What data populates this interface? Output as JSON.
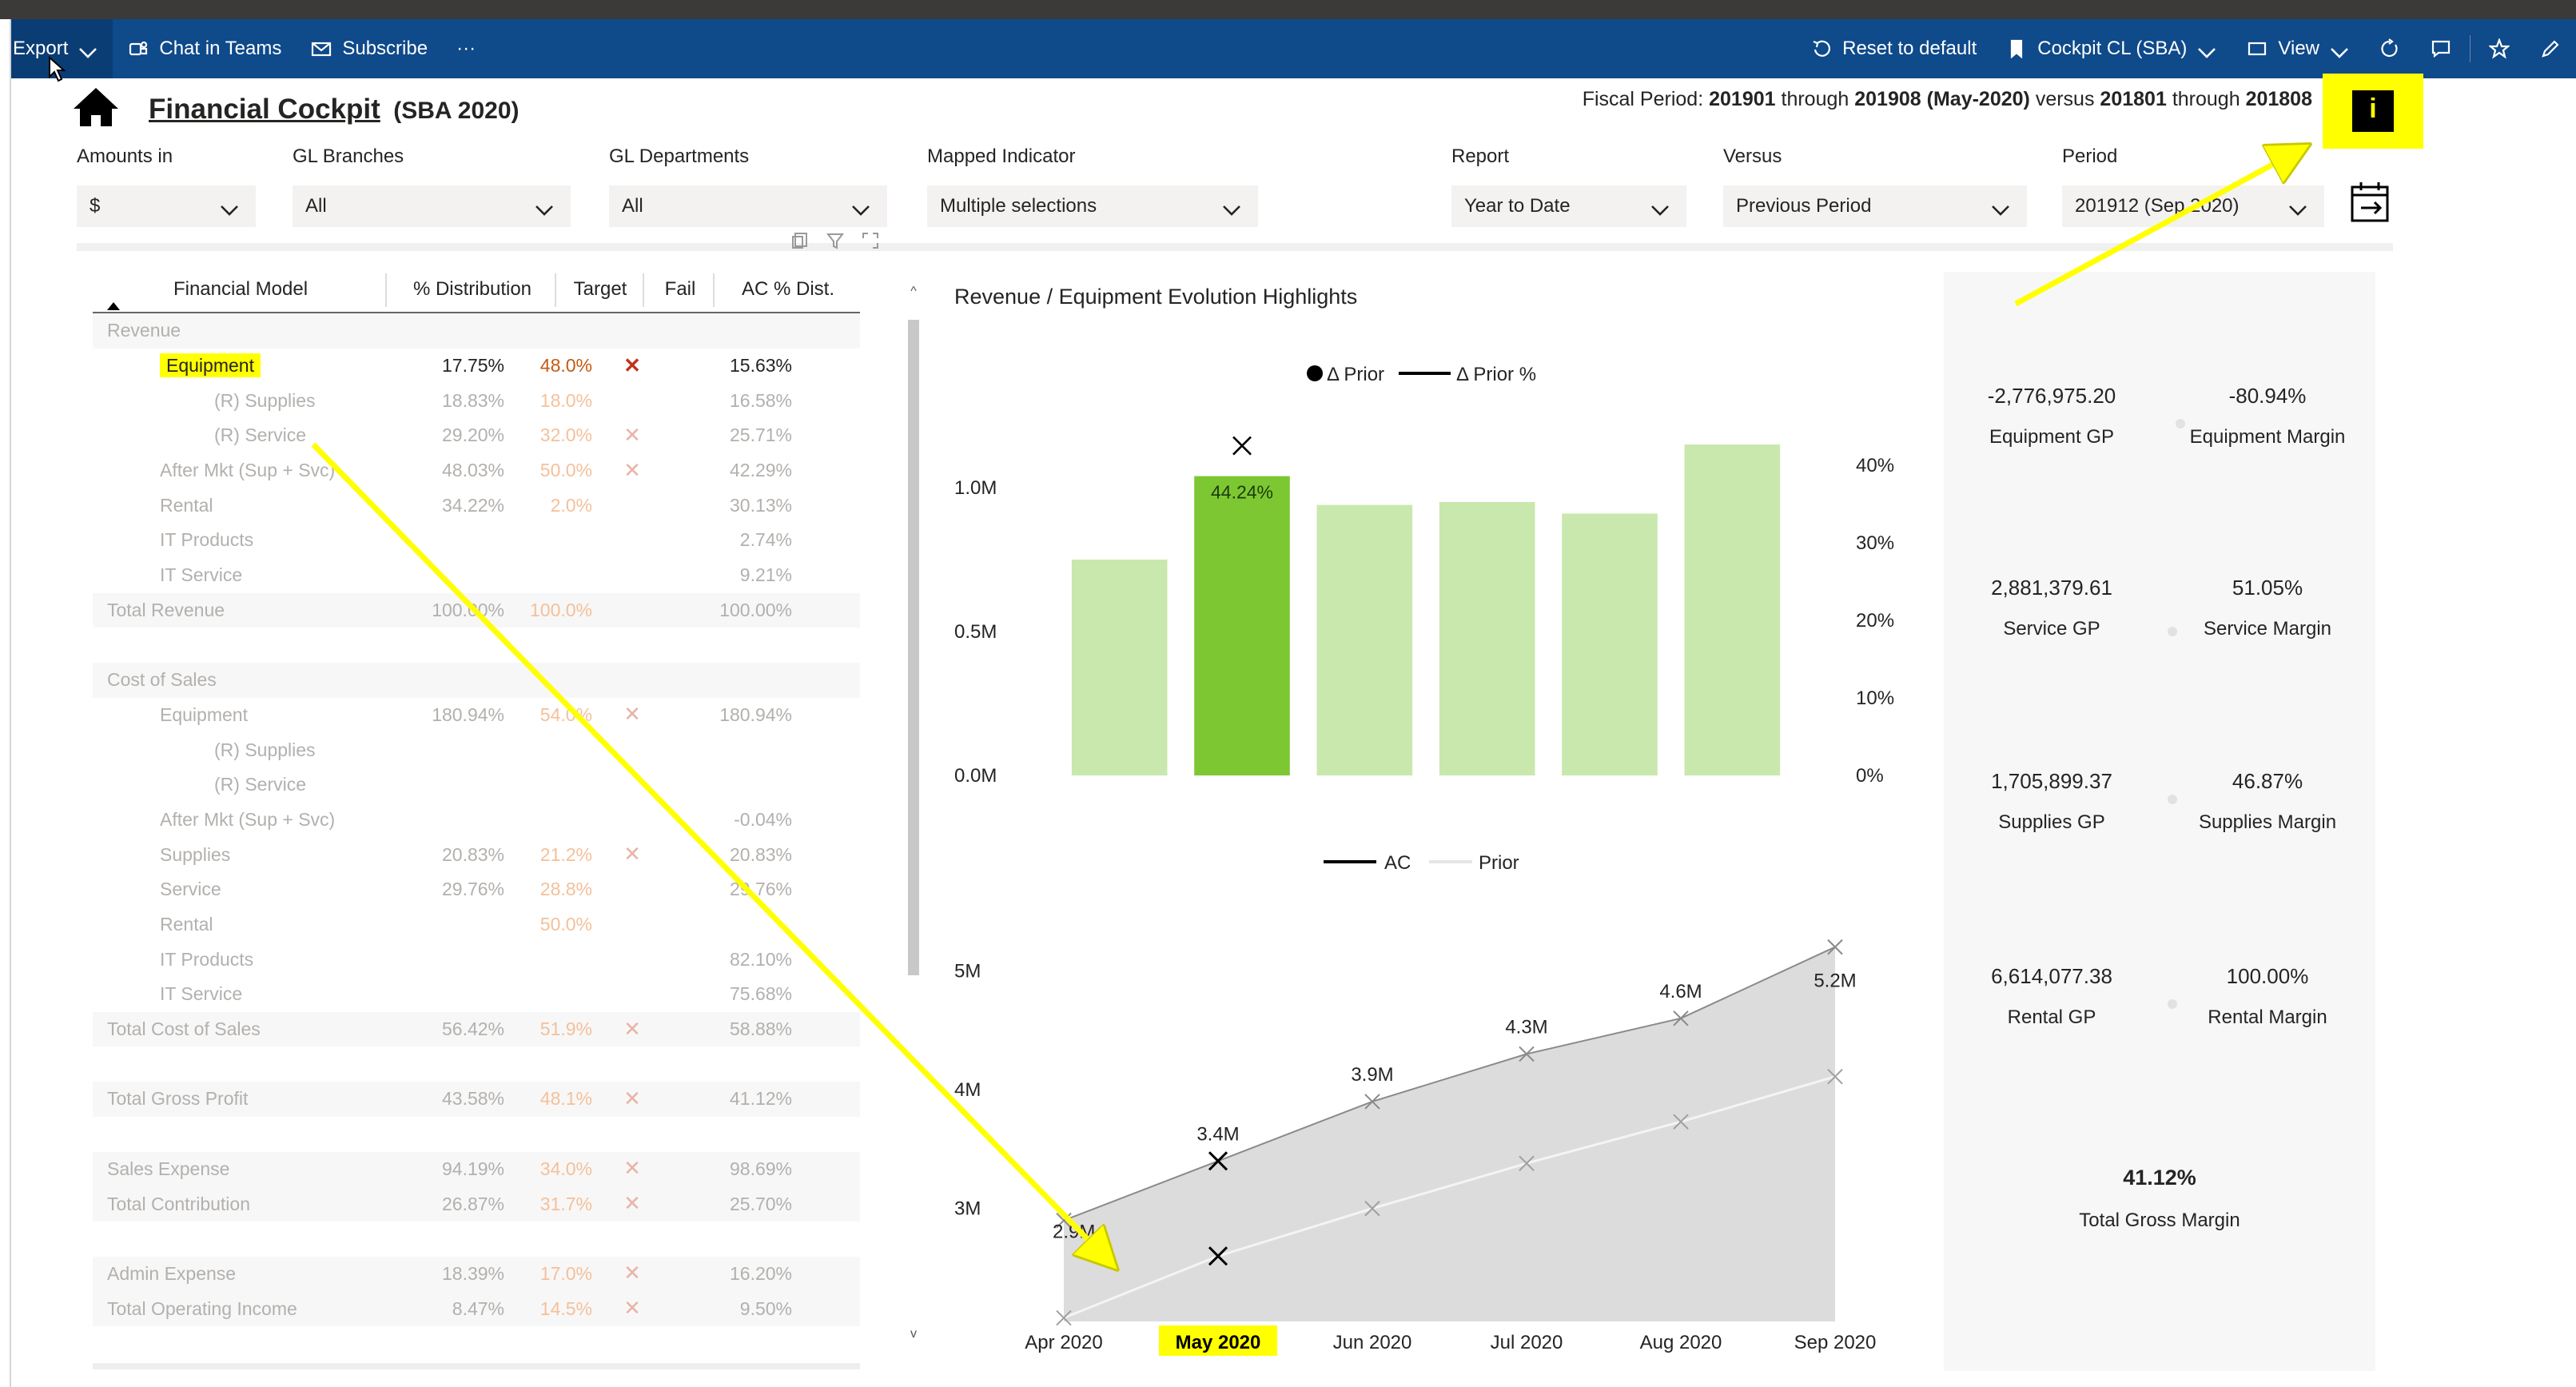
{
  "toolbar": {
    "export": "Export",
    "chat": "Chat in Teams",
    "subscribe": "Subscribe",
    "more": "···",
    "reset": "Reset to default",
    "bookmark": "Cockpit CL (SBA)",
    "view": "View"
  },
  "header": {
    "title": "Financial Cockpit",
    "subtitle": "(SBA 2020)",
    "fiscal_prefix": "Fiscal Period:",
    "fiscal_from": "201901",
    "fiscal_through": "through",
    "fiscal_to": "201908",
    "fiscal_month": "(May-2020)",
    "fiscal_versus": "versus",
    "fiscal_from2": "201801",
    "fiscal_through2": "through",
    "fiscal_to2": "201808"
  },
  "filters": [
    {
      "label": "Amounts in",
      "value": "$"
    },
    {
      "label": "GL Branches",
      "value": "All"
    },
    {
      "label": "GL Departments",
      "value": "All"
    },
    {
      "label": "Mapped Indicator",
      "value": "Multiple selections"
    },
    {
      "label": "Report",
      "value": "Year to Date"
    },
    {
      "label": "Versus",
      "value": "Previous Period"
    },
    {
      "label": "Period",
      "value": "201912 (Sep 2020)"
    }
  ],
  "table": {
    "headers": [
      "Financial Model",
      "% Distribution",
      "Target",
      "Fail",
      "AC % Dist."
    ],
    "rows": [
      {
        "label": "Revenue",
        "indent": 0,
        "dist": "",
        "target": "",
        "fail": false,
        "ac": "",
        "shade": true
      },
      {
        "label": "Equipment",
        "indent": 1,
        "dist": "17.75%",
        "target": "48.0%",
        "fail": true,
        "ac": "15.63%",
        "highlight": true
      },
      {
        "label": "(R) Supplies",
        "indent": 2,
        "dist": "18.83%",
        "target": "18.0%",
        "fail": false,
        "ac": "16.58%"
      },
      {
        "label": "(R) Service",
        "indent": 2,
        "dist": "29.20%",
        "target": "32.0%",
        "fail": true,
        "ac": "25.71%"
      },
      {
        "label": "After Mkt (Sup + Svc)",
        "indent": 1,
        "dist": "48.03%",
        "target": "50.0%",
        "fail": true,
        "ac": "42.29%"
      },
      {
        "label": "Rental",
        "indent": 1,
        "dist": "34.22%",
        "target": "2.0%",
        "fail": false,
        "ac": "30.13%"
      },
      {
        "label": "IT Products",
        "indent": 1,
        "dist": "",
        "target": "",
        "fail": false,
        "ac": "2.74%"
      },
      {
        "label": "IT Service",
        "indent": 1,
        "dist": "",
        "target": "",
        "fail": false,
        "ac": "9.21%"
      },
      {
        "label": "Total Revenue",
        "indent": 0,
        "dist": "100.00%",
        "target": "100.0%",
        "fail": false,
        "ac": "100.00%",
        "shade": true
      },
      {
        "label": "",
        "indent": 0,
        "dist": "",
        "target": "",
        "fail": false,
        "ac": ""
      },
      {
        "label": "Cost of Sales",
        "indent": 0,
        "dist": "",
        "target": "",
        "fail": false,
        "ac": "",
        "shade": true
      },
      {
        "label": "Equipment",
        "indent": 1,
        "dist": "180.94%",
        "target": "54.0%",
        "fail": true,
        "ac": "180.94%"
      },
      {
        "label": "(R) Supplies",
        "indent": 2,
        "dist": "",
        "target": "",
        "fail": false,
        "ac": ""
      },
      {
        "label": "(R) Service",
        "indent": 2,
        "dist": "",
        "target": "",
        "fail": false,
        "ac": ""
      },
      {
        "label": "After Mkt (Sup + Svc)",
        "indent": 1,
        "dist": "",
        "target": "",
        "fail": false,
        "ac": "-0.04%"
      },
      {
        "label": "Supplies",
        "indent": 1,
        "dist": "20.83%",
        "target": "21.2%",
        "fail": true,
        "ac": "20.83%"
      },
      {
        "label": "Service",
        "indent": 1,
        "dist": "29.76%",
        "target": "28.8%",
        "fail": false,
        "ac": "29.76%"
      },
      {
        "label": "Rental",
        "indent": 1,
        "dist": "",
        "target": "50.0%",
        "fail": false,
        "ac": ""
      },
      {
        "label": "IT Products",
        "indent": 1,
        "dist": "",
        "target": "",
        "fail": false,
        "ac": "82.10%"
      },
      {
        "label": "IT Service",
        "indent": 1,
        "dist": "",
        "target": "",
        "fail": false,
        "ac": "75.68%"
      },
      {
        "label": "Total Cost of Sales",
        "indent": 0,
        "dist": "56.42%",
        "target": "51.9%",
        "fail": true,
        "ac": "58.88%",
        "shade": true
      },
      {
        "label": "",
        "indent": 0,
        "dist": "",
        "target": "",
        "fail": false,
        "ac": ""
      },
      {
        "label": "Total Gross Profit",
        "indent": 0,
        "dist": "43.58%",
        "target": "48.1%",
        "fail": true,
        "ac": "41.12%",
        "shade": true
      },
      {
        "label": "",
        "indent": 0,
        "dist": "",
        "target": "",
        "fail": false,
        "ac": ""
      },
      {
        "label": "Sales Expense",
        "indent": 0,
        "dist": "94.19%",
        "target": "34.0%",
        "fail": true,
        "ac": "98.69%",
        "shade": true
      },
      {
        "label": "Total Contribution",
        "indent": 0,
        "dist": "26.87%",
        "target": "31.7%",
        "fail": true,
        "ac": "25.70%",
        "shade": true
      },
      {
        "label": "",
        "indent": 0,
        "dist": "",
        "target": "",
        "fail": false,
        "ac": ""
      },
      {
        "label": "Admin Expense",
        "indent": 0,
        "dist": "18.39%",
        "target": "17.0%",
        "fail": true,
        "ac": "16.20%",
        "shade": true
      },
      {
        "label": "Total Operating Income",
        "indent": 0,
        "dist": "8.47%",
        "target": "14.5%",
        "fail": true,
        "ac": "9.50%",
        "shade": true
      }
    ]
  },
  "chart_panel_title": "Revenue / Equipment Evolution Highlights",
  "chart_data": [
    {
      "type": "bar",
      "legend": [
        "Δ Prior",
        "Δ Prior %"
      ],
      "categories": [
        "Apr 2020",
        "May 2020",
        "Jun 2020",
        "Jul 2020",
        "Aug 2020",
        "Sep 2020"
      ],
      "values": [
        0.75,
        1.04,
        0.94,
        0.95,
        0.91,
        1.15
      ],
      "selected_index": 1,
      "selected_label": "44.24%",
      "y_ticks": [
        "0.0M",
        "0.5M",
        "1.0M"
      ],
      "ylim": [
        0,
        1.25
      ],
      "y2_ticks": [
        "0%",
        "10%",
        "20%",
        "30%",
        "40%"
      ],
      "bar_color": "#c9e8ad",
      "selected_color": "#7dc832"
    },
    {
      "type": "area",
      "legend": [
        "AC",
        "Prior"
      ],
      "categories": [
        "Apr 2020",
        "May 2020",
        "Jun 2020",
        "Jul 2020",
        "Aug 2020",
        "Sep 2020"
      ],
      "series": [
        {
          "name": "AC",
          "values": [
            2.9,
            3.4,
            3.9,
            4.3,
            4.6,
            5.2
          ],
          "labels": [
            "2.9M",
            "3.4M",
            "3.9M",
            "4.3M",
            "4.6M",
            "5.2M"
          ]
        },
        {
          "name": "Prior",
          "values": [
            2.08,
            2.6,
            3.0,
            3.38,
            3.73,
            4.11
          ]
        }
      ],
      "selected_index": 1,
      "y_ticks": [
        "3M",
        "4M",
        "5M"
      ],
      "ylim": [
        2.05,
        5.5
      ]
    }
  ],
  "kpis": [
    {
      "value": "-2,776,975.20",
      "label": "Equipment GP"
    },
    {
      "value": "-80.94%",
      "label": "Equipment Margin"
    },
    {
      "value": "2,881,379.61",
      "label": "Service GP"
    },
    {
      "value": "51.05%",
      "label": "Service Margin"
    },
    {
      "value": "1,705,899.37",
      "label": "Supplies GP"
    },
    {
      "value": "46.87%",
      "label": "Supplies Margin"
    },
    {
      "value": "6,614,077.38",
      "label": "Rental GP"
    },
    {
      "value": "100.00%",
      "label": "Rental Margin"
    }
  ],
  "kpi_total": {
    "value": "41.12%",
    "label": "Total Gross Margin"
  },
  "colors": {
    "toolbar": "#0f4a8a",
    "highlight": "#ffff00",
    "fail": "#c0321b"
  }
}
